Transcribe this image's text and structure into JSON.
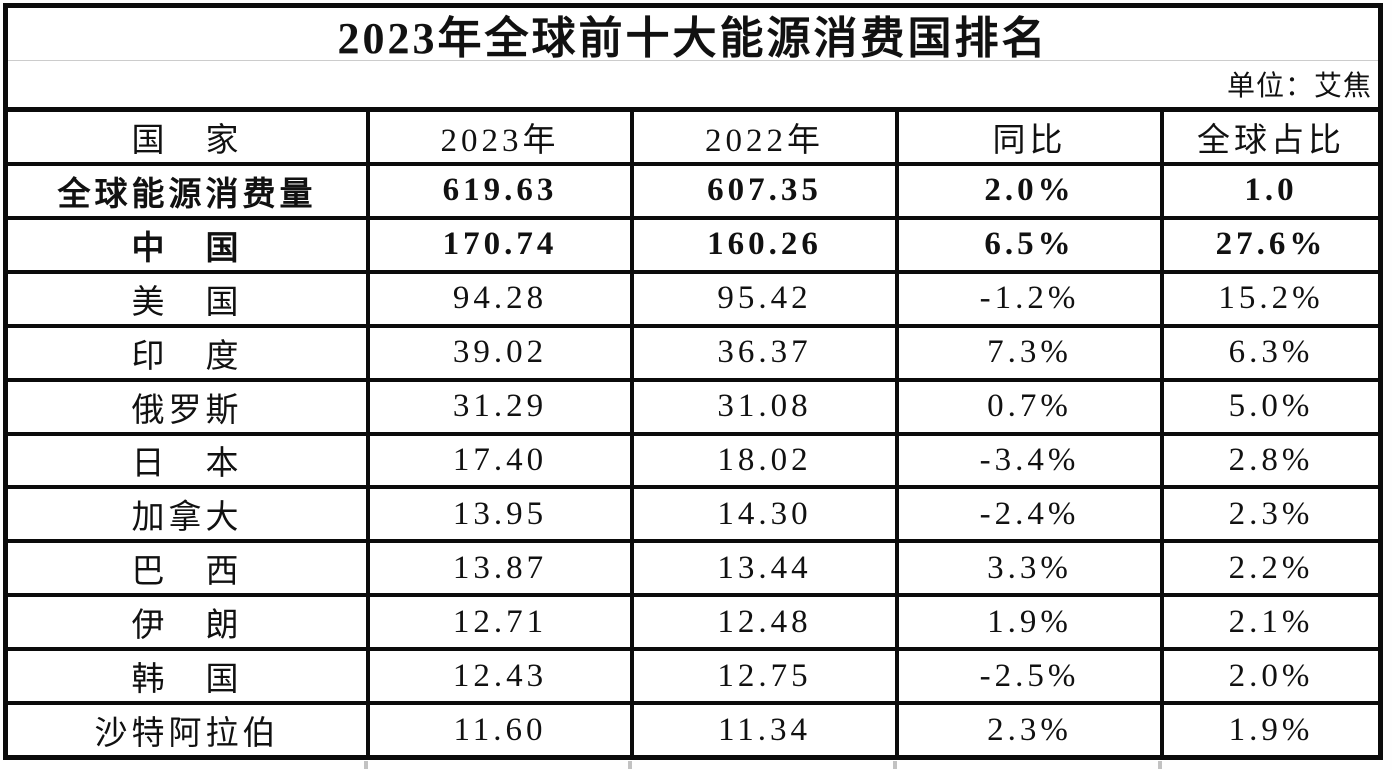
{
  "title": "2023年全球前十大能源消费国排名",
  "unit_label": "单位：艾焦",
  "colors": {
    "border": "#0b0b0b",
    "separator_line": "#cccccc",
    "text": "#111111",
    "background": "#ffffff"
  },
  "chart_data": {
    "type": "table",
    "title": "2023年全球前十大能源消费国排名",
    "unit": "艾焦",
    "columns": [
      "国　家",
      "2023年",
      "2022年",
      "同比",
      "全球占比"
    ],
    "rows": [
      {
        "name": "全球能源消费量",
        "y2023": "619.63",
        "y2022": "607.35",
        "yoy": "2.0%",
        "share": "1.0",
        "bold": true
      },
      {
        "name": "中　国",
        "y2023": "170.74",
        "y2022": "160.26",
        "yoy": "6.5%",
        "share": "27.6%",
        "bold": true
      },
      {
        "name": "美　国",
        "y2023": "94.28",
        "y2022": "95.42",
        "yoy": "-1.2%",
        "share": "15.2%",
        "bold": false
      },
      {
        "name": "印　度",
        "y2023": "39.02",
        "y2022": "36.37",
        "yoy": "7.3%",
        "share": "6.3%",
        "bold": false
      },
      {
        "name": "俄罗斯",
        "y2023": "31.29",
        "y2022": "31.08",
        "yoy": "0.7%",
        "share": "5.0%",
        "bold": false
      },
      {
        "name": "日　本",
        "y2023": "17.40",
        "y2022": "18.02",
        "yoy": "-3.4%",
        "share": "2.8%",
        "bold": false
      },
      {
        "name": "加拿大",
        "y2023": "13.95",
        "y2022": "14.30",
        "yoy": "-2.4%",
        "share": "2.3%",
        "bold": false
      },
      {
        "name": "巴　西",
        "y2023": "13.87",
        "y2022": "13.44",
        "yoy": "3.3%",
        "share": "2.2%",
        "bold": false
      },
      {
        "name": "伊　朗",
        "y2023": "12.71",
        "y2022": "12.48",
        "yoy": "1.9%",
        "share": "2.1%",
        "bold": false
      },
      {
        "name": "韩　国",
        "y2023": "12.43",
        "y2022": "12.75",
        "yoy": "-2.5%",
        "share": "2.0%",
        "bold": false
      },
      {
        "name": "沙特阿拉伯",
        "y2023": "11.60",
        "y2022": "11.34",
        "yoy": "2.3%",
        "share": "1.9%",
        "bold": false
      }
    ]
  }
}
